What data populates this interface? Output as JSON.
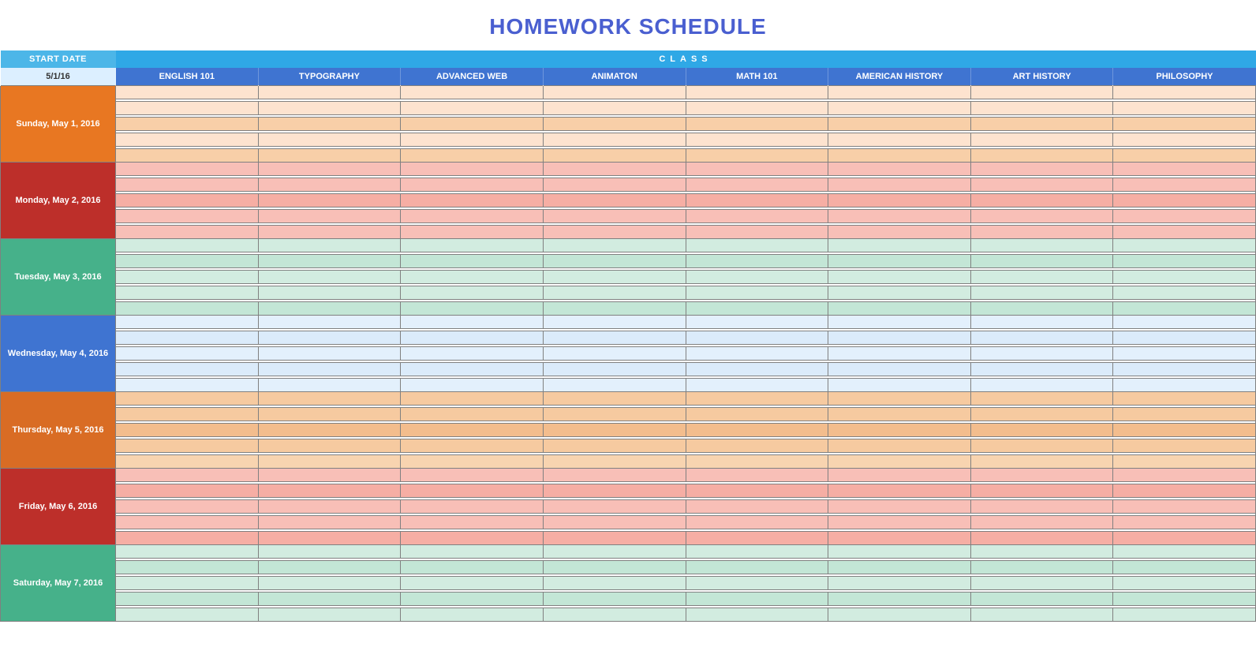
{
  "title": "HOMEWORK SCHEDULE",
  "title_color": "#4a5fd0",
  "header": {
    "start_date_label": "START DATE",
    "start_date_bg": "#4cb6e8",
    "class_label": "CLASS",
    "class_bg": "#2fa8e6",
    "date_value": "5/1/16",
    "date_value_bg": "#dcefff",
    "date_value_color": "#333333",
    "columns_bg": "#3f74d1",
    "columns": [
      "ENGLISH 101",
      "TYPOGRAPHY",
      "ADVANCED WEB",
      "ANIMATON",
      "MATH 101",
      "AMERICAN HISTORY",
      "ART HISTORY",
      "PHILOSOPHY"
    ]
  },
  "rows_per_day": 5,
  "days": [
    {
      "label": "Sunday, May 1, 2016",
      "label_bg": "#e87722",
      "row_shades": [
        "#fde3cf",
        "#fde3cf",
        "#f8cfa8",
        "#fde3cf",
        "#f8cfa8"
      ]
    },
    {
      "label": "Monday, May 2, 2016",
      "label_bg": "#bd2f2a",
      "row_shades": [
        "#f8bfb7",
        "#f8bfb7",
        "#f6aea4",
        "#f8bfb7",
        "#f8bfb7"
      ]
    },
    {
      "label": "Tuesday, May 3, 2016",
      "label_bg": "#46b18a",
      "row_shades": [
        "#d2ece0",
        "#c3e6d6",
        "#d2ece0",
        "#d2ece0",
        "#c3e6d6"
      ]
    },
    {
      "label": "Wednesday, May 4, 2016",
      "label_bg": "#3f74d1",
      "row_shades": [
        "#e3f0fc",
        "#dbebfa",
        "#e3f0fc",
        "#dbebfa",
        "#e3f0fc"
      ]
    },
    {
      "label": "Thursday, May 5, 2016",
      "label_bg": "#d96c24",
      "row_shades": [
        "#f6caa0",
        "#f6caa0",
        "#f3bd8d",
        "#f6caa0",
        "#f8d4b0"
      ]
    },
    {
      "label": "Friday, May 6, 2016",
      "label_bg": "#bd2f2a",
      "row_shades": [
        "#f8bfb7",
        "#f6aea4",
        "#f8bfb7",
        "#f8bfb7",
        "#f6aea4"
      ]
    },
    {
      "label": "Saturday, May 7, 2016",
      "label_bg": "#46b18a",
      "row_shades": [
        "#d2ece0",
        "#c3e6d6",
        "#d2ece0",
        "#c3e6d6",
        "#d2ece0"
      ]
    }
  ]
}
